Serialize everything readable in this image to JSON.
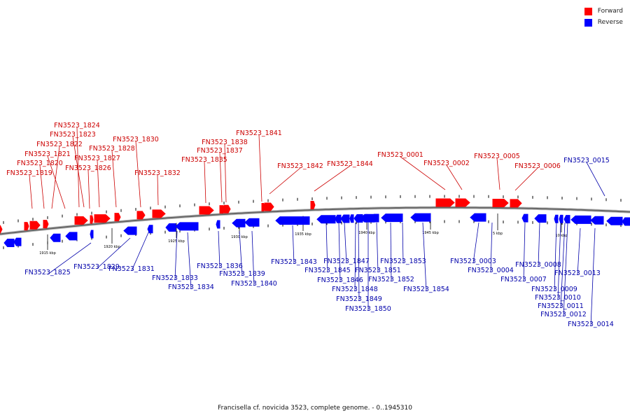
{
  "caption": "Francisella cf. novicida 3523, complete genome. - 0..1945310",
  "legend": {
    "forward_label": "Forward",
    "reverse_label": "Reverse",
    "forward_color": "#ff0000",
    "reverse_color": "#0000ff"
  },
  "scale_labels": [
    "1915 kbp",
    "1920 kbp",
    "1925 kbp",
    "1930 kbp",
    "1935 kbp",
    "1940 kbp",
    "1945 kbp",
    "5 kbp",
    "10 kbp"
  ],
  "forward_labels": [
    "FN3523_1819",
    "FN3523_1820",
    "FN3523_1822",
    "FN3523_1824",
    "FN3523_1823",
    "FN3523_1821",
    "FN3523_1827",
    "FN3523_1826",
    "FN3523_1828",
    "FN3523_1830",
    "FN3523_1832",
    "FN3523_1835",
    "FN3523_1837",
    "FN3523_1838",
    "FN3523_1841",
    "FN3523_1842",
    "FN3523_1844",
    "FN3523_0001",
    "FN3523_0002",
    "FN3523_0005",
    "FN3523_0006",
    "FN3523_0015"
  ],
  "reverse_labels": [
    "FN3523_1825",
    "FN3523_1829",
    "FN3523_1831",
    "FN3523_1833",
    "FN3523_1834",
    "FN3523_1836",
    "FN3523_1839",
    "FN3523_1840",
    "FN3523_1843",
    "FN3523_1845",
    "FN3523_1846",
    "FN3523_1847",
    "FN3523_1848",
    "FN3523_1849",
    "FN3523_1850",
    "FN3523_1851",
    "FN3523_1852",
    "FN3523_1853",
    "FN3523_1854",
    "FN3523_0003",
    "FN3523_0004",
    "FN3523_0007",
    "FN3523_0008",
    "FN3523_0009",
    "FN3523_0010",
    "FN3523_0011",
    "FN3523_0012",
    "FN3523_0013",
    "FN3523_0014"
  ]
}
